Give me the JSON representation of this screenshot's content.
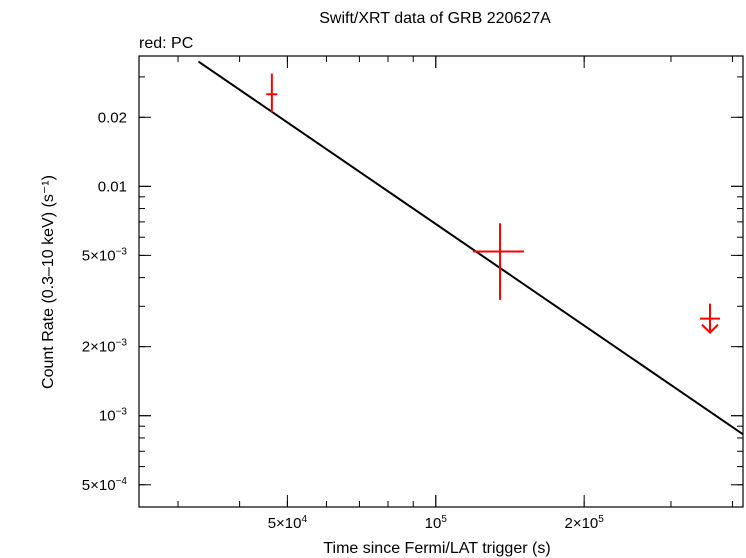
{
  "chart_data": {
    "type": "scatter",
    "title": "Swift/XRT data of GRB 220627A",
    "subtitle": "red: PC",
    "xlabel": "Time since Fermi/LAT trigger (s)",
    "ylabel": "Count Rate (0.3–10 keV) (s⁻¹)",
    "x_scale": "log",
    "y_scale": "log",
    "xlim": [
      25000,
      420000
    ],
    "ylim": [
      0.0004,
      0.037
    ],
    "x_ticks": [
      {
        "value": 50000,
        "mant": "5×10",
        "exp": "4"
      },
      {
        "value": 100000,
        "mant": "10",
        "exp": "5"
      },
      {
        "value": 200000,
        "mant": "2×10",
        "exp": "5"
      }
    ],
    "y_ticks": [
      {
        "value": 0.02,
        "mant": "0.02",
        "exp": ""
      },
      {
        "value": 0.01,
        "mant": "0.01",
        "exp": ""
      },
      {
        "value": 0.005,
        "mant": "5×10",
        "exp": "−3"
      },
      {
        "value": 0.002,
        "mant": "2×10",
        "exp": "−3"
      },
      {
        "value": 0.001,
        "mant": "10",
        "exp": "−3"
      },
      {
        "value": 0.0005,
        "mant": "5×10",
        "exp": "−4"
      }
    ],
    "series": [
      {
        "color": "#ff0000",
        "points": [
          {
            "x": 46500,
            "y": 0.0252,
            "xerr": [
              1200,
              1200
            ],
            "yerr": [
              0.0042,
              0.0058
            ]
          },
          {
            "x": 135000,
            "y": 0.0052,
            "xerr": [
              16000,
              16000
            ],
            "yerr": [
              0.002,
              0.0017
            ]
          }
        ],
        "upper_limits": [
          {
            "x": 360000,
            "y": 0.00265
          }
        ]
      }
    ],
    "model": {
      "color": "#000000",
      "x": [
        33000,
        420000
      ],
      "y": [
        0.035,
        0.00083
      ]
    },
    "grid": false
  }
}
